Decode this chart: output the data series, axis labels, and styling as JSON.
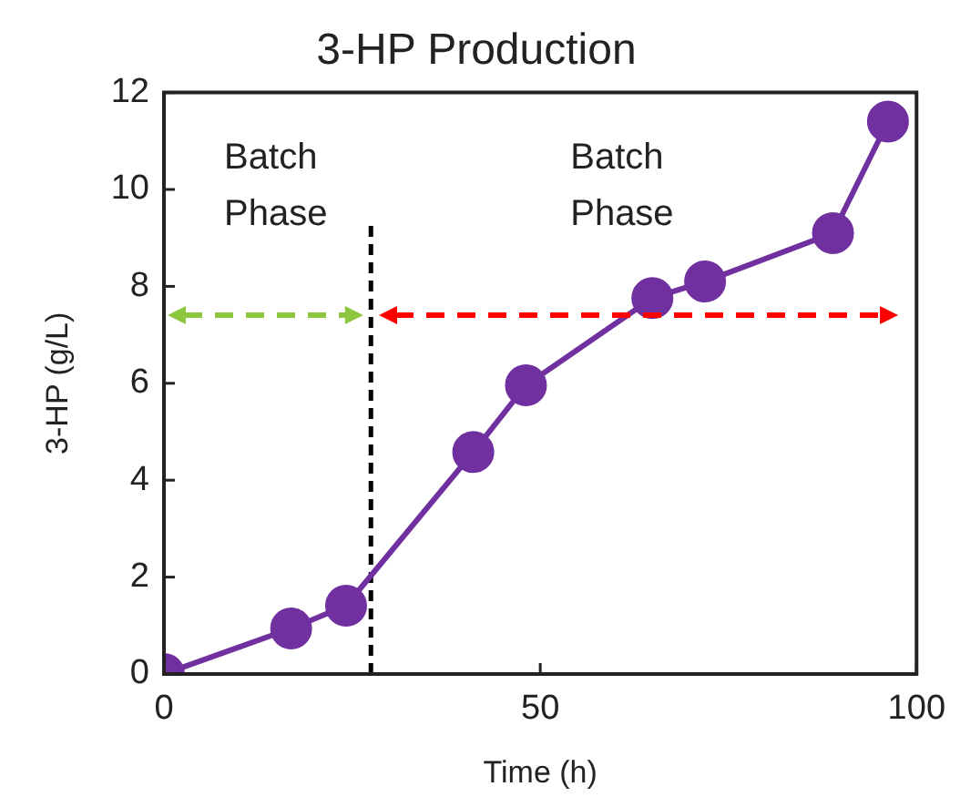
{
  "chart_data": {
    "type": "line",
    "title": "3-HP Production",
    "xlabel": "Time (h)",
    "ylabel": "3-HP (g/L)",
    "x": [
      0,
      16.9,
      24.2,
      41.1,
      48.1,
      64.9,
      71.9,
      88.9,
      96.2
    ],
    "series": [
      {
        "color": "#7030a0",
        "values": [
          0,
          0.94,
          1.41,
          4.58,
          5.96,
          7.76,
          8.1,
          9.1,
          11.4
        ]
      }
    ],
    "xlim": [
      0,
      100
    ],
    "xticks": [
      0,
      50,
      100
    ],
    "ylim": [
      0,
      12
    ],
    "yticks": [
      0,
      2,
      4,
      6,
      8,
      10,
      12
    ],
    "grid": false,
    "legend": false,
    "marker": "circle",
    "line_style": "solid",
    "ref_lines": [
      {
        "axis": "x",
        "value": 27.5,
        "color": "#000000",
        "line_style": "dashed"
      }
    ],
    "annotations": [
      "Batch\nPhase",
      "Batch\nPhase"
    ]
  }
}
